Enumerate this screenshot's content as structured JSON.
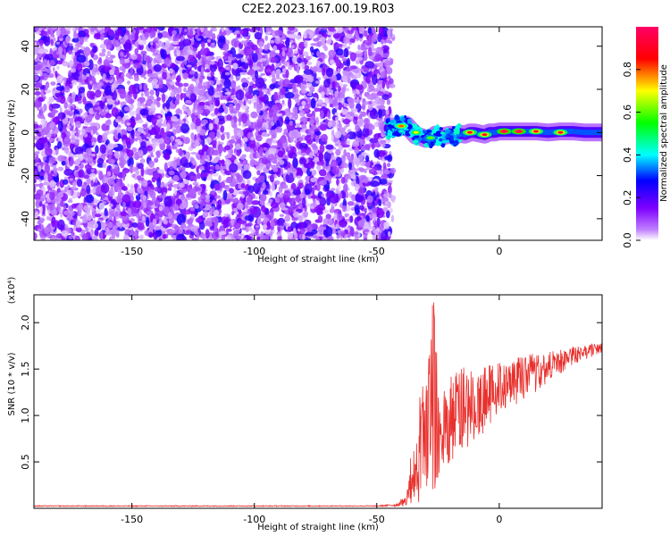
{
  "title": "C2E2.2023.167.00.19.R03",
  "colorbar": {
    "label": "Normalized spectral amplitude",
    "ticks": [
      0.0,
      0.2,
      0.4,
      0.6,
      0.8
    ],
    "tick_labels": [
      "0.0",
      "0.2",
      "0.4",
      "0.6",
      "0.8"
    ],
    "colors": [
      "#ffffff",
      "#7f00ff",
      "#0000ff",
      "#00ffff",
      "#00ff00",
      "#ffff00",
      "#ff0000",
      "#ff0066"
    ]
  },
  "chart_data": [
    {
      "type": "heatmap",
      "name": "spectrogram",
      "xlabel": "Height of straight line (km)",
      "ylabel": "Frequency (Hz)",
      "xlim": [
        -190,
        42
      ],
      "ylim": [
        -50,
        49
      ],
      "xticks": [
        -150,
        -100,
        -50,
        0
      ],
      "xtick_labels": [
        "-150",
        "-100",
        "-50",
        "0"
      ],
      "yticks": [
        -40,
        -20,
        0,
        20,
        40
      ],
      "ytick_labels": [
        "-40",
        "-20",
        "0",
        "20",
        "40"
      ],
      "noise_region": {
        "x": [
          -190,
          -44
        ],
        "y": [
          -50,
          49
        ],
        "amplitude": [
          0.0,
          0.25
        ]
      },
      "signal_track": {
        "x": [
          -45,
          -42,
          -40,
          -38,
          -36,
          -34,
          -32,
          -30,
          -28,
          -26,
          -24,
          -22,
          -20,
          -18,
          -16,
          -14,
          -12,
          -10,
          -8,
          -6,
          -4,
          -2,
          0,
          5,
          10,
          15,
          20,
          25,
          30,
          35,
          42
        ],
        "y": [
          2.0,
          3.0,
          2.5,
          3.5,
          1.0,
          -1.5,
          -2.0,
          -3.0,
          -2.5,
          -1.0,
          -2.0,
          -1.5,
          -1.0,
          -1.5,
          -0.5,
          -1.0,
          0.0,
          0.0,
          -0.5,
          -1.0,
          0.0,
          0.0,
          0.5,
          0.5,
          0.5,
          0.5,
          0.0,
          0.5,
          0.5,
          0.0,
          0.0
        ],
        "amplitude_peaks": [
          {
            "x": -40,
            "y": 3.0,
            "amp": 0.8
          },
          {
            "x": -34,
            "y": 0.0,
            "amp": 0.7
          },
          {
            "x": -28,
            "y": -2.5,
            "amp": 0.6
          },
          {
            "x": -12,
            "y": 0.0,
            "amp": 0.9
          },
          {
            "x": -6,
            "y": -1.0,
            "amp": 0.9
          },
          {
            "x": 2,
            "y": 0.5,
            "amp": 1.0
          },
          {
            "x": 8,
            "y": 0.5,
            "amp": 1.0
          },
          {
            "x": 15,
            "y": 0.5,
            "amp": 0.9
          },
          {
            "x": 25,
            "y": 0.0,
            "amp": 0.9
          }
        ]
      }
    },
    {
      "type": "line",
      "name": "snr",
      "xlabel": "Height of straight line (km)",
      "ylabel": "SNR (10 * v/v)",
      "multiplier_label": "(x10⁴)",
      "xlim": [
        -190,
        42
      ],
      "ylim": [
        0,
        2.3
      ],
      "y_scale_factor": 10000,
      "xticks": [
        -150,
        -100,
        -50,
        0
      ],
      "xtick_labels": [
        "-150",
        "-100",
        "-50",
        "0"
      ],
      "yticks": [
        0.5,
        1.0,
        1.5,
        2.0
      ],
      "ytick_labels": [
        "0.5",
        "1.0",
        "1.5",
        "2.0"
      ],
      "color": "#e8312e",
      "x": [
        -190,
        -100,
        -50,
        -42,
        -38,
        -36,
        -34,
        -32,
        -30,
        -28,
        -27,
        -26,
        -25,
        -24,
        -22,
        -20,
        -18,
        -15,
        -12,
        -8,
        -5,
        -2,
        0,
        5,
        10,
        15,
        20,
        25,
        30,
        35,
        42
      ],
      "y": [
        0.02,
        0.02,
        0.02,
        0.03,
        0.08,
        0.25,
        0.5,
        0.85,
        1.05,
        1.6,
        2.3,
        1.5,
        1.0,
        0.75,
        0.9,
        0.95,
        1.05,
        1.1,
        1.05,
        1.1,
        1.2,
        1.25,
        1.3,
        1.35,
        1.45,
        1.5,
        1.55,
        1.6,
        1.65,
        1.68,
        1.72
      ],
      "envelope_low": [
        0.02,
        0.02,
        0.02,
        0.02,
        0.02,
        0.05,
        0.05,
        0.05,
        0.05,
        0.05,
        0.05,
        0.1,
        0.2,
        0.35,
        0.4,
        0.5,
        0.55,
        0.6,
        0.65,
        0.75,
        0.85,
        0.95,
        1.0,
        1.05,
        1.15,
        1.25,
        1.35,
        1.45,
        1.55,
        1.6,
        1.65
      ],
      "envelope_high": [
        0.03,
        0.03,
        0.03,
        0.05,
        0.15,
        0.6,
        1.0,
        1.35,
        1.3,
        1.98,
        2.3,
        1.95,
        1.45,
        1.25,
        1.35,
        1.4,
        1.5,
        1.55,
        1.5,
        1.5,
        1.55,
        1.55,
        1.6,
        1.6,
        1.65,
        1.68,
        1.7,
        1.72,
        1.75,
        1.76,
        1.78
      ]
    }
  ]
}
